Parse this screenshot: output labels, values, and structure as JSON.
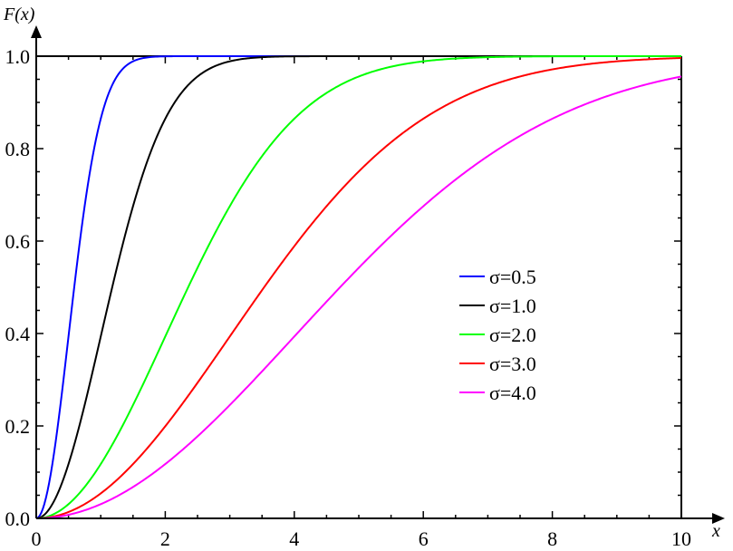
{
  "chart_data": {
    "type": "line",
    "title": "",
    "xlabel": "x",
    "ylabel": "F(x)",
    "xlim": [
      0,
      10
    ],
    "ylim": [
      0,
      1.0
    ],
    "xticks": [
      0,
      2,
      4,
      6,
      8,
      10
    ],
    "yticks": [
      0,
      0.2,
      0.4,
      0.6,
      0.8,
      1.0
    ],
    "xtick_labels": [
      "0",
      "2",
      "4",
      "6",
      "8",
      "10"
    ],
    "ytick_labels": [
      "0.0",
      "0.2",
      "0.4",
      "0.6",
      "0.8",
      "1.0"
    ],
    "function": "Rayleigh CDF F(x) = 1 - exp(-x^2 / (2 sigma^2))",
    "legend_position": "center-right",
    "grid": false,
    "series": [
      {
        "name": "σ=0.5",
        "sigma": 0.5,
        "color": "#0000ff"
      },
      {
        "name": "σ=1.0",
        "sigma": 1.0,
        "color": "#000000"
      },
      {
        "name": "σ=2.0",
        "sigma": 2.0,
        "color": "#00ff00"
      },
      {
        "name": "σ=3.0",
        "sigma": 3.0,
        "color": "#ff0000"
      },
      {
        "name": "σ=4.0",
        "sigma": 4.0,
        "color": "#ff00ff"
      }
    ]
  }
}
